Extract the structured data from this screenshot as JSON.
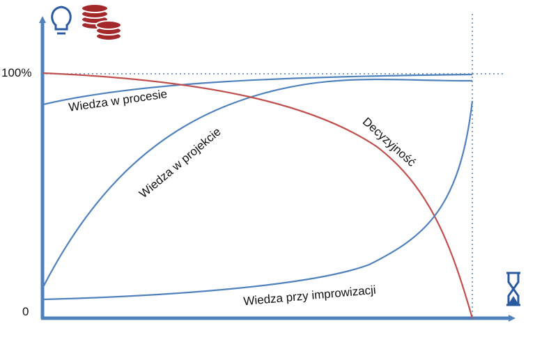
{
  "axis": {
    "top_label": "100%",
    "bottom_label": "0"
  },
  "curves": [
    {
      "label": "Wiedza w procesie"
    },
    {
      "label": "Wiedza w projekcie"
    },
    {
      "label": "Decyzyjność"
    },
    {
      "label": "Wiedza przy improwizacji"
    }
  ]
}
